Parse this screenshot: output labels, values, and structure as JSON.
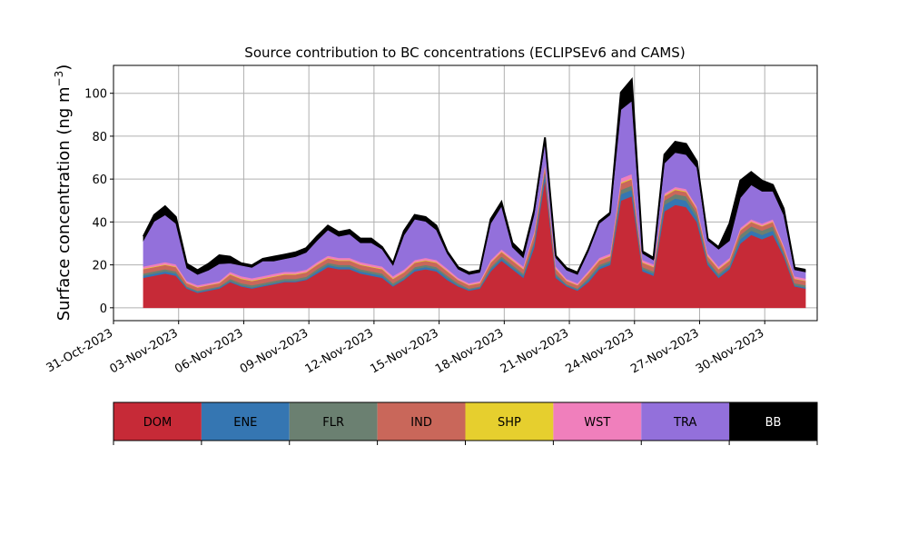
{
  "chart_data": {
    "type": "area",
    "title": "Source contribution to BC concentrations (ECLIPSEv6 and CAMS)",
    "ylabel": "Surface concentration (ng m",
    "ylabel_sup": "−3",
    "ylabel_close": ")",
    "xlabel": "",
    "xlim": [
      "2023-10-31",
      "2023-12-02T10:00"
    ],
    "ylim": [
      -6,
      113
    ],
    "yticks": [
      0,
      20,
      40,
      60,
      80,
      100
    ],
    "xticks": [
      {
        "date": "2023-10-31",
        "label": "31-Oct-2023"
      },
      {
        "date": "2023-11-03",
        "label": "03-Nov-2023"
      },
      {
        "date": "2023-11-06",
        "label": "06-Nov-2023"
      },
      {
        "date": "2023-11-09",
        "label": "09-Nov-2023"
      },
      {
        "date": "2023-11-12",
        "label": "12-Nov-2023"
      },
      {
        "date": "2023-11-15",
        "label": "15-Nov-2023"
      },
      {
        "date": "2023-11-18",
        "label": "18-Nov-2023"
      },
      {
        "date": "2023-11-21",
        "label": "21-Nov-2023"
      },
      {
        "date": "2023-11-24",
        "label": "24-Nov-2023"
      },
      {
        "date": "2023-11-27",
        "label": "27-Nov-2023"
      },
      {
        "date": "2023-11-30",
        "label": "30-Nov-2023"
      }
    ],
    "grid": true,
    "legend_position": "below",
    "x": [
      "2023-11-01T09:00",
      "2023-11-01T21:00",
      "2023-11-02T09:00",
      "2023-11-02T21:00",
      "2023-11-03T09:00",
      "2023-11-03T21:00",
      "2023-11-04T09:00",
      "2023-11-04T21:00",
      "2023-11-05T09:00",
      "2023-11-05T21:00",
      "2023-11-06T09:00",
      "2023-11-06T21:00",
      "2023-11-07T09:00",
      "2023-11-07T21:00",
      "2023-11-08T09:00",
      "2023-11-08T21:00",
      "2023-11-09T09:00",
      "2023-11-09T21:00",
      "2023-11-10T09:00",
      "2023-11-10T21:00",
      "2023-11-11T09:00",
      "2023-11-11T21:00",
      "2023-11-12T09:00",
      "2023-11-12T21:00",
      "2023-11-13T09:00",
      "2023-11-13T21:00",
      "2023-11-14T09:00",
      "2023-11-14T21:00",
      "2023-11-15T09:00",
      "2023-11-15T21:00",
      "2023-11-16T09:00",
      "2023-11-16T21:00",
      "2023-11-17T09:00",
      "2023-11-17T21:00",
      "2023-11-18T09:00",
      "2023-11-18T21:00",
      "2023-11-19T09:00",
      "2023-11-19T21:00",
      "2023-11-20T09:00",
      "2023-11-20T21:00",
      "2023-11-21T09:00",
      "2023-11-21T21:00",
      "2023-11-22T09:00",
      "2023-11-22T21:00",
      "2023-11-23T09:00",
      "2023-11-23T21:00",
      "2023-11-24T09:00",
      "2023-11-24T21:00",
      "2023-11-25T09:00",
      "2023-11-25T21:00",
      "2023-11-26T09:00",
      "2023-11-26T21:00",
      "2023-11-27T09:00",
      "2023-11-27T21:00",
      "2023-11-28T09:00",
      "2023-11-28T21:00",
      "2023-11-29T09:00",
      "2023-11-29T21:00",
      "2023-11-30T09:00",
      "2023-11-30T21:00",
      "2023-12-01T09:00",
      "2023-12-01T21:00"
    ],
    "series": [
      {
        "name": "DOM",
        "color": "#c62a37",
        "values": [
          14,
          15,
          16,
          15,
          9,
          7,
          8,
          9,
          12,
          10,
          9,
          10,
          11,
          12,
          12,
          13,
          16,
          19,
          18,
          18,
          16,
          15,
          14,
          10,
          13,
          17,
          18,
          17,
          13,
          10,
          8,
          9,
          17,
          22,
          18,
          14,
          28,
          60,
          14,
          10,
          8,
          12,
          18,
          20,
          50,
          52,
          17,
          15,
          45,
          48,
          47,
          40,
          20,
          14,
          18,
          30,
          34,
          32,
          34,
          24,
          10,
          9
        ]
      },
      {
        "name": "ENE",
        "color": "#3576b2",
        "values": [
          1,
          1,
          1,
          1,
          0.5,
          0.5,
          0.5,
          0.5,
          0.5,
          0.5,
          0.5,
          0.5,
          0.5,
          0.5,
          0.5,
          0.5,
          1,
          1,
          1,
          1,
          1,
          1,
          1,
          0.5,
          0.5,
          1,
          1,
          1,
          1,
          0.5,
          0.5,
          0.5,
          1,
          1,
          1,
          1,
          2,
          3,
          1,
          0.5,
          0.5,
          1,
          1,
          1,
          3,
          3,
          1,
          1,
          3,
          3,
          3,
          2,
          1,
          1,
          1,
          2,
          2,
          2,
          2,
          1,
          0.5,
          0.5
        ]
      },
      {
        "name": "FLR",
        "color": "#6b8071",
        "values": [
          1,
          1,
          1,
          1,
          0.5,
          0.5,
          0.5,
          0.5,
          1,
          1,
          1,
          1,
          1,
          1,
          1,
          1,
          1,
          1,
          1,
          1,
          1,
          1,
          1,
          1,
          1,
          1,
          1,
          1,
          1,
          1,
          0.5,
          0.5,
          1,
          1,
          1,
          1,
          1,
          1,
          1,
          0.5,
          0.5,
          1,
          1,
          1,
          2,
          2,
          1,
          1,
          2,
          2,
          2,
          2,
          1,
          1,
          1,
          2,
          2,
          2,
          2,
          1,
          1,
          1
        ]
      },
      {
        "name": "IND",
        "color": "#c9675a",
        "values": [
          2,
          2,
          2,
          2,
          1.5,
          1.5,
          1.5,
          1.5,
          2,
          2,
          2,
          2,
          2,
          2,
          2,
          2,
          2,
          2,
          2,
          2,
          2,
          2,
          2,
          2,
          2,
          2,
          2,
          2,
          2,
          1.5,
          1.5,
          1.5,
          2,
          2,
          2,
          2,
          3,
          2,
          2,
          1.5,
          1.5,
          2,
          2,
          2,
          3,
          3,
          2,
          2,
          2,
          2,
          2,
          2,
          2,
          2,
          2,
          2,
          2,
          2,
          2,
          2,
          2,
          2
        ]
      },
      {
        "name": "SHP",
        "color": "#e6cf2e",
        "values": [
          0.3,
          0.3,
          0.3,
          0.3,
          0.2,
          0.2,
          0.2,
          0.2,
          0.3,
          0.3,
          0.3,
          0.3,
          0.3,
          0.3,
          0.3,
          0.3,
          0.3,
          0.3,
          0.3,
          0.3,
          0.3,
          0.3,
          0.3,
          0.3,
          0.3,
          0.3,
          0.3,
          0.3,
          0.3,
          0.2,
          0.2,
          0.2,
          0.3,
          0.3,
          0.3,
          0.3,
          0.4,
          0.4,
          0.3,
          0.2,
          0.2,
          0.3,
          0.3,
          0.3,
          0.4,
          0.4,
          0.3,
          0.3,
          0.4,
          0.4,
          0.4,
          0.3,
          0.3,
          0.3,
          0.3,
          0.3,
          0.3,
          0.3,
          0.3,
          0.3,
          0.2,
          0.2
        ]
      },
      {
        "name": "WST",
        "color": "#f07fbc",
        "values": [
          1,
          1,
          1,
          1,
          0.8,
          0.8,
          0.8,
          0.8,
          1,
          1,
          1,
          1,
          1,
          1,
          1,
          1,
          1,
          1,
          1,
          1,
          1,
          1,
          1,
          1,
          1,
          1,
          1,
          1,
          1,
          0.8,
          0.8,
          0.8,
          1,
          1,
          1,
          1,
          1,
          1,
          1,
          0.8,
          0.8,
          1,
          1,
          1,
          2,
          2,
          1,
          1,
          1,
          1,
          1,
          1,
          1,
          1,
          1,
          1,
          1,
          1,
          1,
          1,
          1,
          1
        ]
      },
      {
        "name": "TRA",
        "color": "#9370db",
        "values": [
          12,
          20,
          22,
          19,
          6,
          5,
          6,
          8,
          4,
          5,
          5,
          7,
          6,
          6,
          7,
          8,
          10,
          12,
          10,
          11,
          9,
          10,
          8,
          5,
          16,
          19,
          17,
          14,
          7,
          4,
          4,
          4,
          17,
          20,
          5,
          4,
          8,
          10,
          4,
          4,
          4,
          9,
          16,
          18,
          32,
          34,
          3,
          2,
          14,
          16,
          16,
          18,
          6,
          8,
          8,
          14,
          16,
          15,
          13,
          14,
          3,
          3
        ]
      },
      {
        "name": "BB",
        "color": "#000000",
        "values": [
          2,
          3,
          4,
          3,
          2,
          2,
          3,
          4,
          3,
          1,
          1,
          1,
          2,
          2,
          2,
          2,
          2,
          2,
          2,
          2,
          2,
          2,
          1,
          1,
          2,
          2,
          2,
          2,
          1,
          1,
          1,
          1,
          2,
          2,
          2,
          2,
          2,
          2,
          1,
          1,
          1,
          1,
          1,
          1,
          8,
          10,
          1,
          1,
          4,
          5,
          5,
          3,
          1,
          1,
          8,
          8,
          6,
          5,
          3,
          3,
          1,
          1
        ]
      }
    ]
  }
}
